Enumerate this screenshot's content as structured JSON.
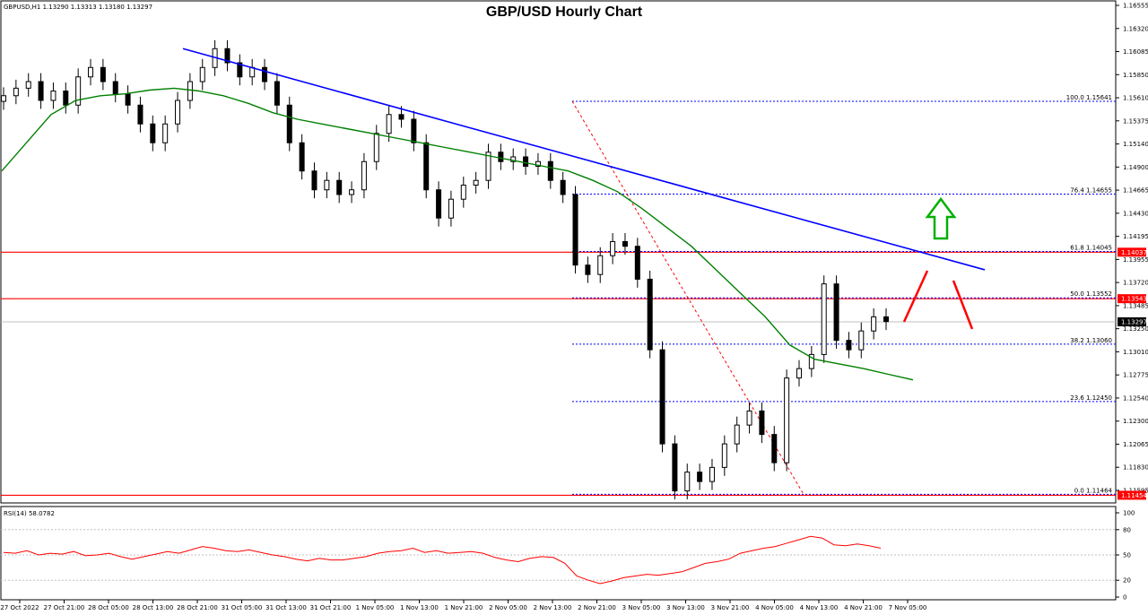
{
  "window": {
    "symbol_header": "GBPUSD,H1  1.13290 1.13313 1.13180 1.13297",
    "title": "GBP/USD Hourly Chart"
  },
  "colors": {
    "bull_candle": "#ffffff",
    "bear_candle": "#000000",
    "ma_line": "#008000",
    "trend_line": "#0000ff",
    "resistance_line": "#ff0000",
    "fib_line": "#0000ff",
    "rsi_line": "#ff0000",
    "up_arrow": "#00b000",
    "scenario_arrow": "#ff0000"
  },
  "price_axis": {
    "ticks": [
      "1.16555",
      "1.16320",
      "1.16085",
      "1.15850",
      "1.15610",
      "1.15375",
      "1.15140",
      "1.14900",
      "1.14665",
      "1.14430",
      "1.14195",
      "1.13955",
      "1.13720",
      "1.13485",
      "1.13250",
      "1.13010",
      "1.12775",
      "1.12540",
      "1.12300",
      "1.12065",
      "1.11830",
      "1.11595"
    ],
    "current_price_label": "1.13297",
    "price_labels": [
      {
        "text": "1.14037",
        "value": 1.14037
      },
      {
        "text": "1.13543",
        "value": 1.13543
      },
      {
        "text": "1.11454",
        "value": 1.11454
      }
    ]
  },
  "fibonacci": {
    "levels": [
      {
        "label": "100.0 1.15641",
        "value": 1.15641
      },
      {
        "label": "76.4 1.14655",
        "value": 1.14655
      },
      {
        "label": "61.8 1.14045",
        "value": 1.14045
      },
      {
        "label": "50.0 1.13552",
        "value": 1.13552
      },
      {
        "label": "38.2 1.13060",
        "value": 1.1306
      },
      {
        "label": "23.6 1.12450",
        "value": 1.1245
      },
      {
        "label": "0.0 1.11464",
        "value": 1.11464
      }
    ]
  },
  "rsi": {
    "label": "RSI(14) 58.0782",
    "ticks": [
      "100",
      "80",
      "50",
      "20",
      "0"
    ]
  },
  "time_axis": {
    "labels": [
      "27 Oct 2022",
      "27 Oct 21:00",
      "28 Oct 05:00",
      "28 Oct 13:00",
      "28 Oct 21:00",
      "31 Oct 05:00",
      "31 Oct 13:00",
      "31 Oct 21:00",
      "1 Nov 05:00",
      "1 Nov 13:00",
      "1 Nov 21:00",
      "2 Nov 05:00",
      "2 Nov 13:00",
      "2 Nov 21:00",
      "3 Nov 05:00",
      "3 Nov 13:00",
      "3 Nov 21:00",
      "4 Nov 05:00",
      "4 Nov 13:00",
      "4 Nov 21:00",
      "7 Nov 05:00"
    ]
  },
  "chart_data": {
    "type": "line",
    "title": "GBP/USD Hourly Chart",
    "note_type": "candlestick",
    "ylim": [
      1.1142,
      1.1666
    ],
    "resistance_levels": [
      1.14037,
      1.13543
    ],
    "support_levels": [
      1.11454
    ],
    "trend_line": {
      "from": 1.162,
      "to": 1.1385
    },
    "series": [
      {
        "name": "GBPUSD,H1 close",
        "values": [
          1.157,
          1.1578,
          1.1585,
          1.1565,
          1.1575,
          1.156,
          1.159,
          1.16,
          1.1585,
          1.1572,
          1.156,
          1.154,
          1.152,
          1.154,
          1.1565,
          1.1585,
          1.16,
          1.162,
          1.1605,
          1.159,
          1.16,
          1.1585,
          1.156,
          1.152,
          1.149,
          1.147,
          1.148,
          1.1465,
          1.147,
          1.15,
          1.153,
          1.155,
          1.1545,
          1.152,
          1.147,
          1.144,
          1.146,
          1.1475,
          1.148,
          1.151,
          1.15,
          1.1505,
          1.1495,
          1.15,
          1.148,
          1.1465,
          1.139,
          1.138,
          1.14,
          1.1415,
          1.141,
          1.1375,
          1.13,
          1.12,
          1.115,
          1.117,
          1.116,
          1.1175,
          1.12,
          1.122,
          1.1235,
          1.121,
          1.118,
          1.127,
          1.128,
          1.1295,
          1.137,
          1.131,
          1.13,
          1.132,
          1.1335,
          1.133
        ]
      },
      {
        "name": "Moving average",
        "values": [
          1.149,
          1.152,
          1.155,
          1.1565,
          1.157,
          1.1572,
          1.1576,
          1.1578,
          1.1575,
          1.157,
          1.1562,
          1.1552,
          1.1545,
          1.154,
          1.1535,
          1.153,
          1.1525,
          1.152,
          1.1515,
          1.151,
          1.1505,
          1.15,
          1.1495,
          1.149,
          1.148,
          1.1468,
          1.145,
          1.143,
          1.141,
          1.1385,
          1.136,
          1.1335,
          1.1305,
          1.129,
          1.1285,
          1.128,
          1.1274,
          1.1268
        ]
      },
      {
        "name": "RSI(14)",
        "values": [
          53,
          52,
          55,
          50,
          52,
          51,
          54,
          49,
          50,
          52,
          48,
          45,
          48,
          51,
          54,
          52,
          56,
          60,
          58,
          55,
          54,
          56,
          53,
          50,
          48,
          45,
          43,
          46,
          44,
          44,
          46,
          48,
          52,
          54,
          55,
          58,
          53,
          55,
          52,
          53,
          54,
          52,
          47,
          44,
          42,
          46,
          48,
          47,
          40,
          25,
          20,
          16,
          19,
          23,
          25,
          27,
          26,
          28,
          30,
          35,
          40,
          42,
          45,
          52,
          55,
          58,
          60,
          64,
          68,
          72,
          70,
          62,
          61,
          63,
          61,
          58
        ]
      }
    ]
  }
}
